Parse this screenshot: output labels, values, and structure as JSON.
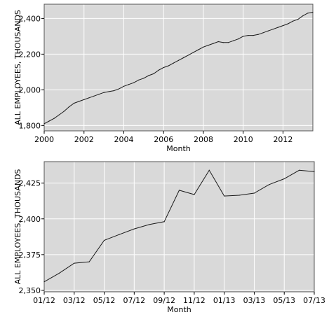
{
  "chart_data": [
    {
      "type": "line",
      "xlabel": "Month",
      "ylabel": "ALL EMPLOYEES, THOUSANDS",
      "x_tick_labels": [
        "2000",
        "2002",
        "2004",
        "2006",
        "2008",
        "2010",
        "2012"
      ],
      "y_tick_labels": [
        "1,800",
        "2,000",
        "2,200",
        "2,400"
      ],
      "xlim": [
        2000.0,
        2013.5
      ],
      "ylim": [
        1770,
        2480
      ],
      "x_ticks": [
        2000,
        2002,
        2004,
        2006,
        2008,
        2010,
        2012
      ],
      "y_ticks": [
        1800,
        2000,
        2200,
        2400
      ],
      "grid": true,
      "background_color": "#d9d9d9",
      "line_color": "#1a1a1a",
      "x": [
        2000.0,
        2000.25,
        2000.5,
        2000.75,
        2001.0,
        2001.25,
        2001.5,
        2001.75,
        2002.0,
        2002.25,
        2002.5,
        2002.75,
        2003.0,
        2003.25,
        2003.5,
        2003.75,
        2004.0,
        2004.25,
        2004.5,
        2004.75,
        2005.0,
        2005.25,
        2005.5,
        2005.75,
        2006.0,
        2006.25,
        2006.5,
        2006.75,
        2007.0,
        2007.25,
        2007.5,
        2007.75,
        2008.0,
        2008.25,
        2008.5,
        2008.75,
        2009.0,
        2009.25,
        2009.5,
        2009.75,
        2010.0,
        2010.25,
        2010.5,
        2010.75,
        2011.0,
        2011.25,
        2011.5,
        2011.75,
        2012.0,
        2012.25,
        2012.5,
        2012.75,
        2013.0,
        2013.25,
        2013.5
      ],
      "values": [
        1810,
        1825,
        1840,
        1860,
        1880,
        1905,
        1925,
        1935,
        1945,
        1955,
        1965,
        1975,
        1985,
        1990,
        1995,
        2005,
        2020,
        2030,
        2040,
        2055,
        2065,
        2080,
        2090,
        2110,
        2125,
        2135,
        2150,
        2165,
        2180,
        2195,
        2210,
        2225,
        2240,
        2250,
        2260,
        2270,
        2265,
        2265,
        2275,
        2285,
        2300,
        2305,
        2305,
        2310,
        2320,
        2330,
        2340,
        2350,
        2360,
        2370,
        2385,
        2395,
        2415,
        2430,
        2435
      ]
    },
    {
      "type": "line",
      "xlabel": "Month",
      "ylabel": "ALL EMPLOYEES, THOUSANDS",
      "x_tick_labels": [
        "01/12",
        "03/12",
        "05/12",
        "07/12",
        "09/12",
        "11/12",
        "01/13",
        "03/13",
        "05/13",
        "07/13"
      ],
      "y_tick_labels": [
        "2,350",
        "2,375",
        "2,400",
        "2,425"
      ],
      "xlim": [
        0,
        18
      ],
      "ylim": [
        2349,
        2440
      ],
      "x_ticks": [
        0,
        2,
        4,
        6,
        8,
        10,
        12,
        14,
        16,
        18
      ],
      "y_ticks": [
        2350,
        2375,
        2400,
        2425
      ],
      "grid": true,
      "background_color": "#d9d9d9",
      "line_color": "#1a1a1a",
      "x": [
        0,
        1,
        2,
        3,
        4,
        5,
        6,
        7,
        8,
        9,
        10,
        11,
        12,
        13,
        14,
        15,
        16,
        17,
        18
      ],
      "values": [
        2356,
        2362,
        2369,
        2370,
        2385,
        2389,
        2393,
        2396,
        2398,
        2420,
        2417,
        2434,
        2416,
        2416.5,
        2418,
        2424,
        2428,
        2434,
        2433
      ]
    }
  ]
}
